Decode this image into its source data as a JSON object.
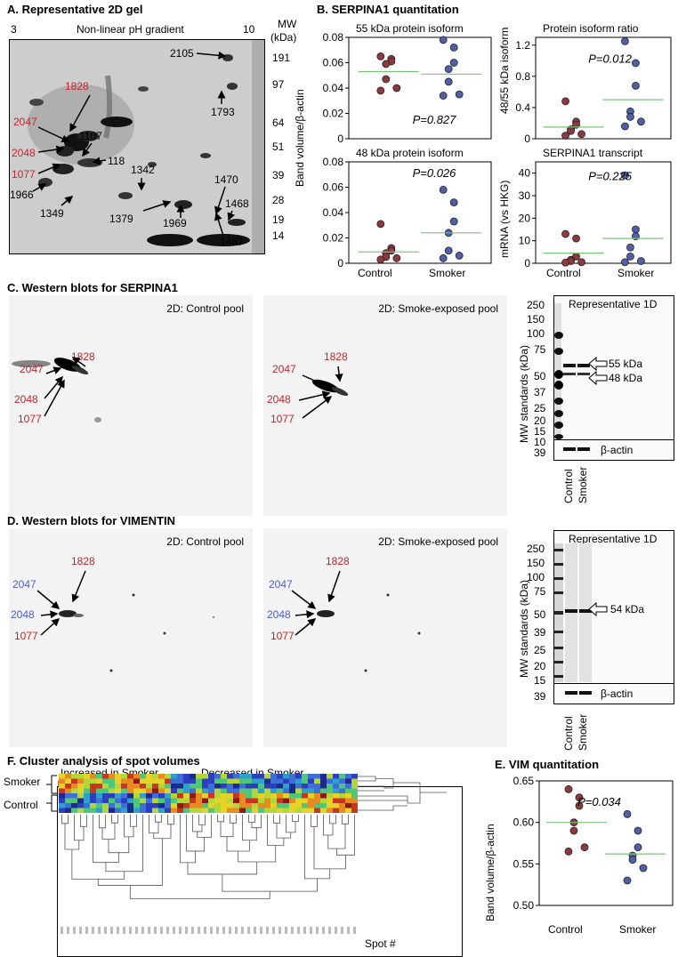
{
  "panelA": {
    "title_letter": "A.",
    "title": "Representative 2D gel",
    "ph_start": "3",
    "ph_label": "Non-linear pH gradient",
    "ph_end": "10",
    "mw_title": "MW",
    "mw_unit": "(kDa)",
    "mw_ticks": [
      "191",
      "97",
      "64",
      "51",
      "39",
      "28",
      "19",
      "14"
    ],
    "spots_red": [
      "2047",
      "1828",
      "2048",
      "1077"
    ],
    "spots_black": [
      "2105",
      "1793",
      "1107",
      "118",
      "1966",
      "1342",
      "1470",
      "1468",
      "1349",
      "1379",
      "1969",
      "1487"
    ]
  },
  "panelB": {
    "title_letter": "B.",
    "title": "SERPINA1 quantitation",
    "ylabel_left": "Band volume/β-actin",
    "ylabel_ratio": "48/55 kDa isoform",
    "ylabel_transcript": "mRNA (vs HKG)",
    "xcat_control": "Control",
    "xcat_smoker": "Smoker"
  },
  "chart_data": [
    {
      "type": "scatter",
      "title": "55 kDa protein isoform",
      "categories": [
        "Control",
        "Smoker"
      ],
      "ylim": [
        0,
        0.08
      ],
      "yticks": [
        "0",
        "0.02",
        "0.04",
        "0.06",
        "0.08"
      ],
      "series": [
        {
          "values": [
            0.065,
            0.063,
            0.061,
            0.059,
            0.047,
            0.04,
            0.038
          ]
        },
        {
          "values": [
            0.078,
            0.072,
            0.06,
            0.055,
            0.045,
            0.035,
            0.034
          ]
        }
      ],
      "means": [
        0.053,
        0.051
      ],
      "annotation": "P=0.827"
    },
    {
      "type": "scatter",
      "title": "Protein isoform ratio",
      "categories": [
        "Control",
        "Smoker"
      ],
      "ylim": [
        0,
        1.3
      ],
      "yticks": [
        "0",
        "0.4",
        "0.8",
        "1.2"
      ],
      "series": [
        {
          "values": [
            0.48,
            0.22,
            0.18,
            0.12,
            0.1,
            0.06,
            0.04
          ]
        },
        {
          "values": [
            1.25,
            0.97,
            0.68,
            0.35,
            0.28,
            0.22,
            0.16
          ]
        }
      ],
      "means": [
        0.15,
        0.5
      ],
      "annotation": "P=0.012"
    },
    {
      "type": "scatter",
      "title": "48 kDa protein isoform",
      "categories": [
        "Control",
        "Smoker"
      ],
      "ylim": [
        0,
        0.08
      ],
      "yticks": [
        "0",
        "0.02",
        "0.04",
        "0.06",
        "0.08"
      ],
      "series": [
        {
          "values": [
            0.031,
            0.012,
            0.01,
            0.008,
            0.005,
            0.004,
            0.003
          ]
        },
        {
          "values": [
            0.058,
            0.048,
            0.033,
            0.024,
            0.01,
            0.006,
            0.004
          ]
        }
      ],
      "means": [
        0.009,
        0.024
      ],
      "annotation": "P=0.026"
    },
    {
      "type": "scatter",
      "title": "SERPINA1 transcript",
      "categories": [
        "Control",
        "Smoker"
      ],
      "ylim": [
        0,
        45
      ],
      "yticks": [
        "0",
        "10",
        "20",
        "30",
        "40"
      ],
      "series": [
        {
          "values": [
            13,
            11,
            3,
            1.5,
            1,
            0.5,
            0.3
          ]
        },
        {
          "values": [
            39,
            15,
            12,
            7,
            3,
            1,
            0.5
          ]
        }
      ],
      "means": [
        4.5,
        11
      ],
      "annotation": "P=0.225"
    },
    {
      "type": "scatter",
      "title": "",
      "categories": [
        "Control",
        "Smoker"
      ],
      "ylim": [
        0.5,
        0.65
      ],
      "yticks": [
        "0.50",
        "0.55",
        "0.60",
        "0.65"
      ],
      "series": [
        {
          "values": [
            0.64,
            0.63,
            0.62,
            0.6,
            0.59,
            0.57,
            0.565
          ]
        },
        {
          "values": [
            0.61,
            0.59,
            0.57,
            0.56,
            0.555,
            0.545,
            0.53
          ]
        }
      ],
      "means": [
        0.6,
        0.562
      ],
      "annotation": "P=0.034"
    }
  ],
  "panelC": {
    "title_letter": "C.",
    "title": "Western blots for SERPINA1",
    "blot1_label": "2D: Control pool",
    "blot2_label": "2D: Smoke-exposed pool",
    "spots": [
      "2047",
      "1828",
      "2048",
      "1077"
    ],
    "rep_label": "Representative 1D",
    "mw_axis": "MW standards (kDa)",
    "mw_ticks": [
      "250",
      "150",
      "100",
      "75",
      "50",
      "37",
      "25",
      "20",
      "15",
      "10"
    ],
    "band1": "55 kDa",
    "band2": "48 kDa",
    "actin": "β-actin",
    "actin_mw": "39",
    "lane1": "Control",
    "lane2": "Smoker"
  },
  "panelD": {
    "title_letter": "D.",
    "title": "Western blots for VIMENTIN",
    "blot1_label": "2D: Control pool",
    "blot2_label": "2D: Smoke-exposed pool",
    "spots_blue": [
      "2047",
      "2048"
    ],
    "spots_red": [
      "1828",
      "1077"
    ],
    "rep_label": "Representative 1D",
    "mw_axis": "MW standards (kDa)",
    "mw_ticks": [
      "250",
      "150",
      "100",
      "75",
      "50",
      "39",
      "25",
      "20",
      "15"
    ],
    "band1": "54 kDa",
    "actin": "β-actin",
    "actin_mw": "39",
    "lane1": "Control",
    "lane2": "Smoker"
  },
  "panelE": {
    "title_letter": "E.",
    "title": "VIM quantitation",
    "ylabel": "Band volume/β-actin",
    "xcat_control": "Control",
    "xcat_smoker": "Smoker"
  },
  "panelF": {
    "title_letter": "F.",
    "title": "Cluster analysis of spot volumes",
    "increased": "Increased in Smoker",
    "decreased": "Decreased in Smoker",
    "row_smoker": "Smoker",
    "row_control": "Control",
    "xlabel": "Spot #"
  },
  "colors": {
    "control": "#8b3a3e",
    "smoker": "#4f5fa8",
    "mean": "#7ac27a",
    "red_label": "#c0272d",
    "blue_label": "#4b5fd8"
  }
}
